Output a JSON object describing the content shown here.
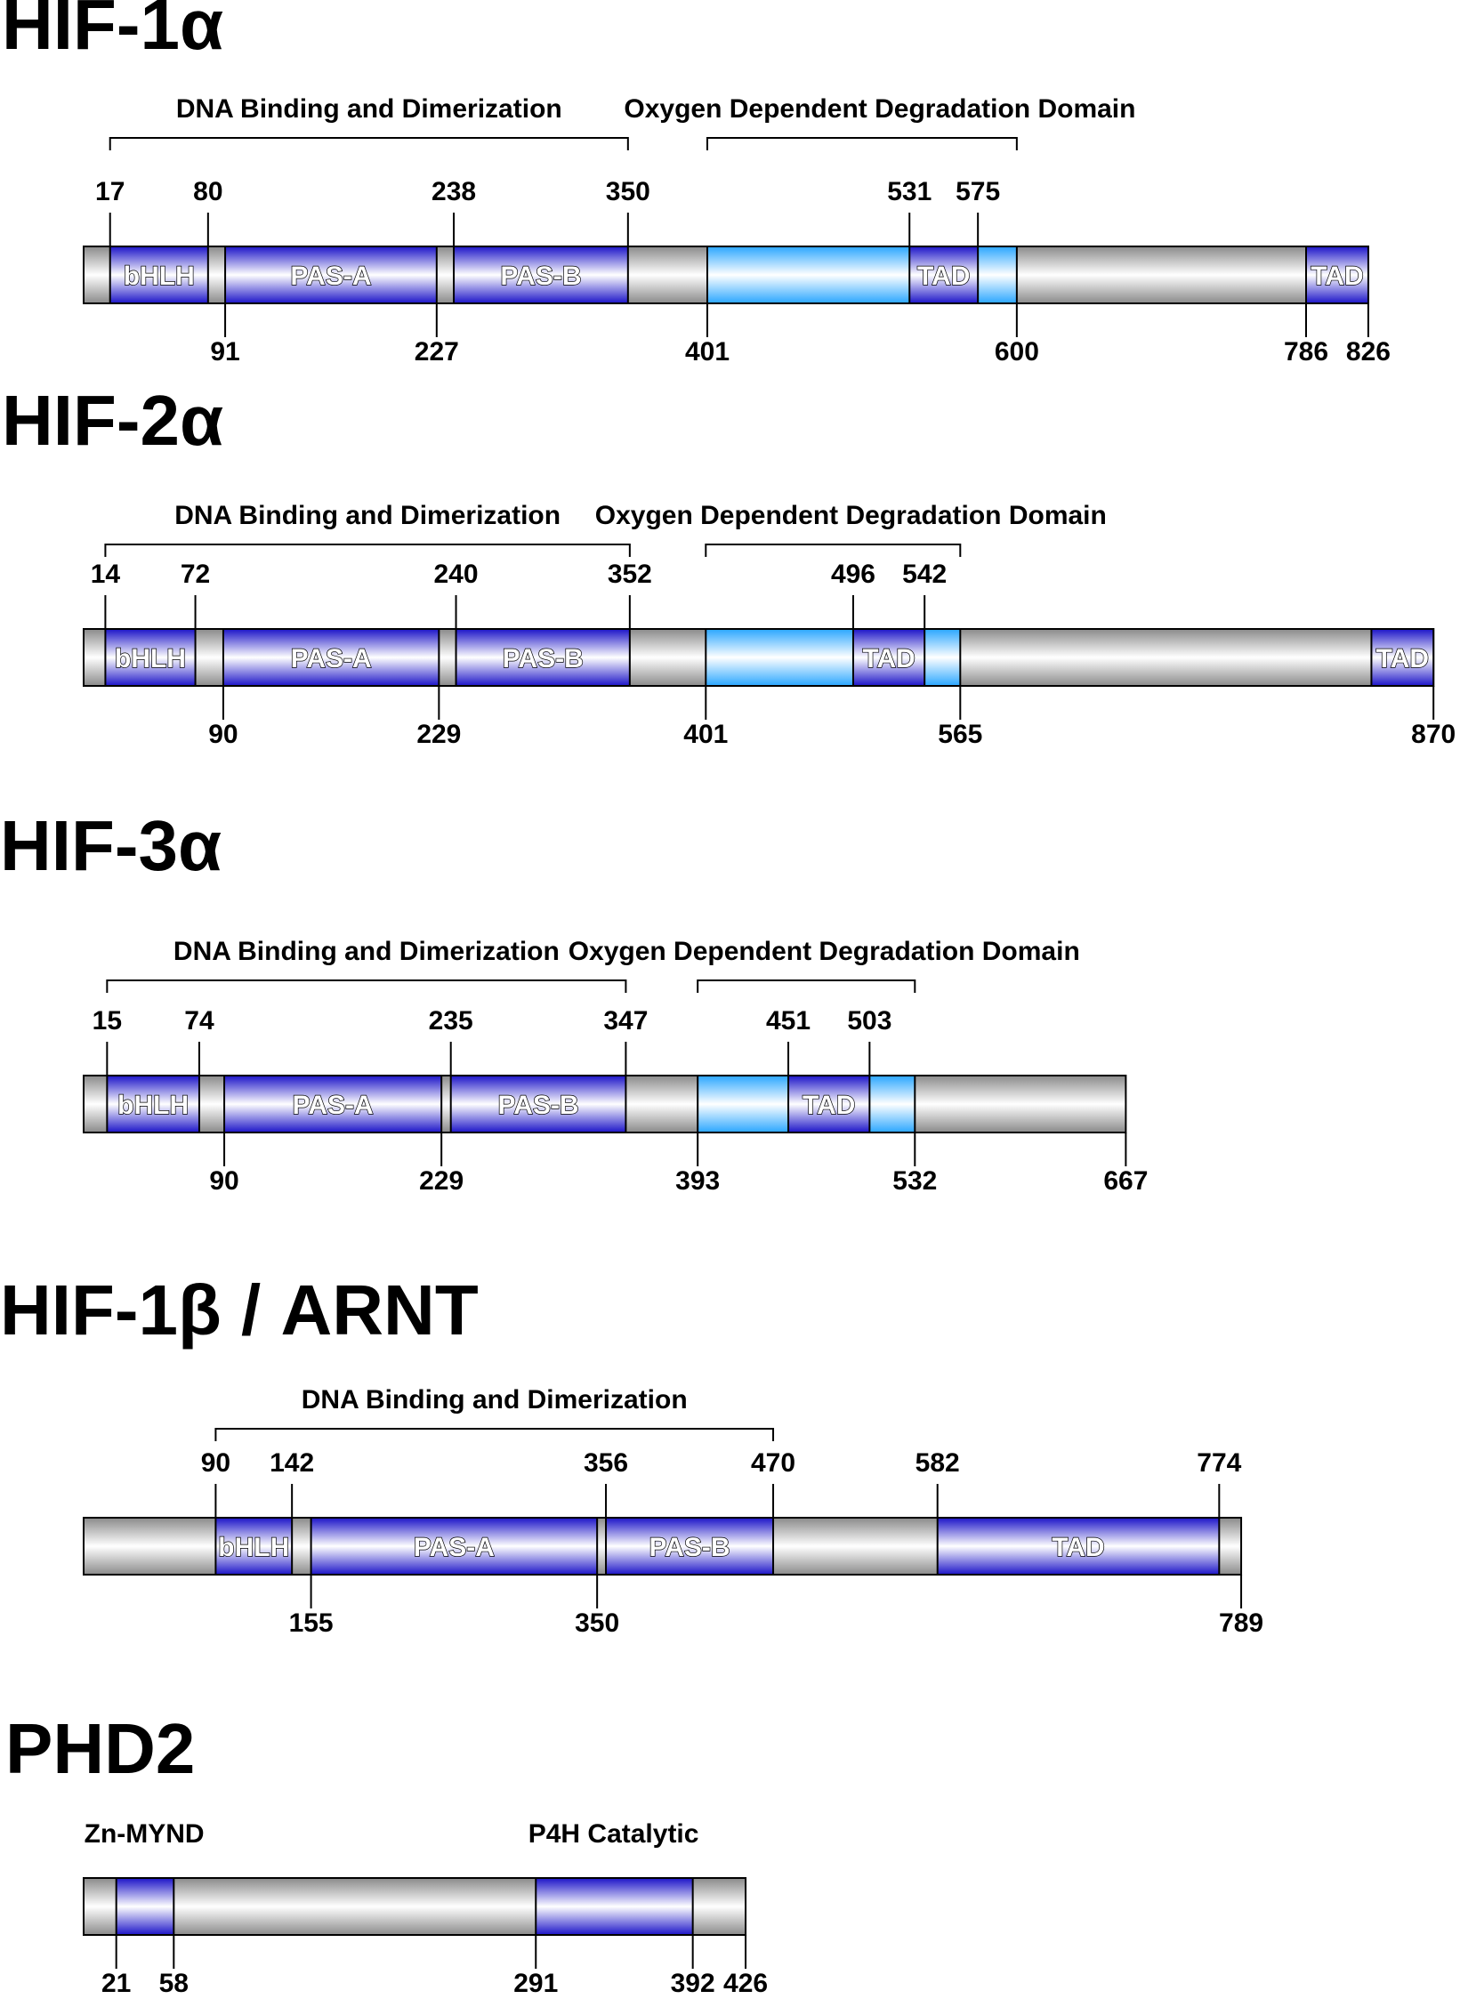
{
  "colors": {
    "backbone_mid": "#ffffff",
    "backbone_edge": "#8a8a8a",
    "domain_mid": "#ffffff",
    "domain_edge": "#1c14c8",
    "odd_mid": "#ffffff",
    "odd_edge": "#2aa6ff",
    "outline": "#000000"
  },
  "proteins": [
    {
      "name": "HIF-1α",
      "length": 826,
      "brackets": [
        {
          "label": "DNA Binding and Dimerization",
          "start": 17,
          "end": 350
        },
        {
          "label": "Oxygen Dependent Degradation Domain",
          "start": 401,
          "end": 600
        }
      ],
      "domains": [
        {
          "label": "ODD",
          "start": 401,
          "end": 600,
          "style": "odd",
          "show_label": false
        },
        {
          "label": "bHLH",
          "start": 17,
          "end": 80,
          "style": "blue",
          "show_label": true
        },
        {
          "label": "PAS-A",
          "start": 91,
          "end": 227,
          "style": "blue",
          "show_label": true
        },
        {
          "label": "PAS-B",
          "start": 238,
          "end": 350,
          "style": "blue",
          "show_label": true
        },
        {
          "label": "TAD",
          "start": 531,
          "end": 575,
          "style": "blue",
          "show_label": true
        },
        {
          "label": "TAD",
          "start": 786,
          "end": 826,
          "style": "blue",
          "show_label": true
        }
      ],
      "ticks_top": [
        17,
        80,
        238,
        350,
        531,
        575
      ],
      "ticks_bottom": [
        91,
        227,
        401,
        600,
        786,
        826
      ]
    },
    {
      "name": "HIF-2α",
      "length": 870,
      "brackets": [
        {
          "label": "DNA Binding and Dimerization",
          "start": 14,
          "end": 352
        },
        {
          "label": "Oxygen Dependent Degradation Domain",
          "start": 401,
          "end": 565
        }
      ],
      "domains": [
        {
          "label": "ODD",
          "start": 401,
          "end": 565,
          "style": "odd",
          "show_label": false
        },
        {
          "label": "bHLH",
          "start": 14,
          "end": 72,
          "style": "blue",
          "show_label": true
        },
        {
          "label": "PAS-A",
          "start": 90,
          "end": 229,
          "style": "blue",
          "show_label": true
        },
        {
          "label": "PAS-B",
          "start": 240,
          "end": 352,
          "style": "blue",
          "show_label": true
        },
        {
          "label": "TAD",
          "start": 496,
          "end": 542,
          "style": "blue",
          "show_label": true
        },
        {
          "label": "TAD",
          "start": 830,
          "end": 870,
          "style": "blue",
          "show_label": true
        }
      ],
      "ticks_top": [
        14,
        72,
        240,
        352,
        496,
        542
      ],
      "ticks_bottom": [
        90,
        229,
        401,
        565,
        870
      ]
    },
    {
      "name": "HIF-3α",
      "length": 667,
      "brackets": [
        {
          "label": "DNA Binding and Dimerization",
          "start": 15,
          "end": 347
        },
        {
          "label": "Oxygen Dependent Degradation Domain",
          "start": 393,
          "end": 532
        }
      ],
      "domains": [
        {
          "label": "ODD",
          "start": 393,
          "end": 532,
          "style": "odd",
          "show_label": false
        },
        {
          "label": "bHLH",
          "start": 15,
          "end": 74,
          "style": "blue",
          "show_label": true
        },
        {
          "label": "PAS-A",
          "start": 90,
          "end": 229,
          "style": "blue",
          "show_label": true
        },
        {
          "label": "PAS-B",
          "start": 235,
          "end": 347,
          "style": "blue",
          "show_label": true
        },
        {
          "label": "TAD",
          "start": 451,
          "end": 503,
          "style": "blue",
          "show_label": true
        }
      ],
      "ticks_top": [
        15,
        74,
        235,
        347,
        451,
        503
      ],
      "ticks_bottom": [
        90,
        229,
        393,
        532,
        667
      ]
    },
    {
      "name": "HIF-1β / ARNT",
      "length": 789,
      "brackets": [
        {
          "label": "DNA Binding and Dimerization",
          "start": 90,
          "end": 470
        }
      ],
      "domains": [
        {
          "label": "bHLH",
          "start": 90,
          "end": 142,
          "style": "blue",
          "show_label": true
        },
        {
          "label": "PAS-A",
          "start": 155,
          "end": 350,
          "style": "blue",
          "show_label": true
        },
        {
          "label": "PAS-B",
          "start": 356,
          "end": 470,
          "style": "blue",
          "show_label": true
        },
        {
          "label": "TAD",
          "start": 582,
          "end": 774,
          "style": "blue",
          "show_label": true
        }
      ],
      "ticks_top": [
        90,
        142,
        356,
        470,
        582,
        774
      ],
      "ticks_bottom": [
        155,
        350,
        789
      ]
    },
    {
      "name": "PHD2",
      "length": 426,
      "brackets": [],
      "domain_titles": [
        {
          "label": "Zn-MYND",
          "at": 39
        },
        {
          "label": "P4H Catalytic",
          "at": 341
        }
      ],
      "domains": [
        {
          "label": "Zn-MYND",
          "start": 21,
          "end": 58,
          "style": "blue",
          "show_label": false
        },
        {
          "label": "P4H Catalytic",
          "start": 291,
          "end": 392,
          "style": "blue",
          "show_label": false
        }
      ],
      "ticks_top": [],
      "ticks_bottom": [
        21,
        58,
        291,
        392,
        426
      ]
    }
  ]
}
